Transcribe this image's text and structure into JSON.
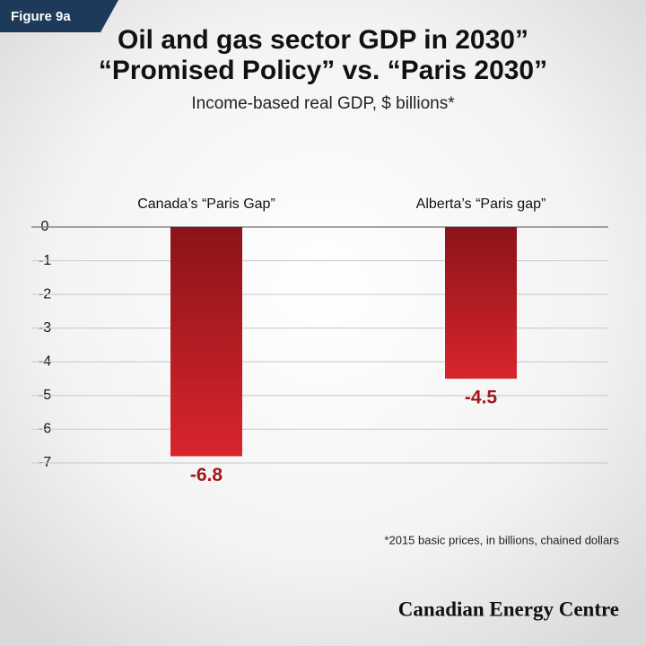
{
  "chart_data": {
    "type": "bar",
    "figure_label": "Figure 9a",
    "title": [
      "Oil and gas sector GDP in 2030”",
      "“Promised Policy” vs. “Paris 2030”"
    ],
    "subtitle": "Income-based real GDP, $ billions*",
    "categories": [
      "Canada’s “Paris Gap”",
      "Alberta’s “Paris gap”"
    ],
    "values": [
      -6.8,
      -4.5
    ],
    "color": "#c41e24",
    "label_color": "#a3161c",
    "ylim": [
      -7,
      0
    ],
    "yticks": [
      0,
      -1,
      -2,
      -3,
      -4,
      -5,
      -6,
      -7
    ],
    "grid": true,
    "footnote": "*2015 basic prices, in billions, chained dollars",
    "source": "Canadian Energy Centre"
  }
}
